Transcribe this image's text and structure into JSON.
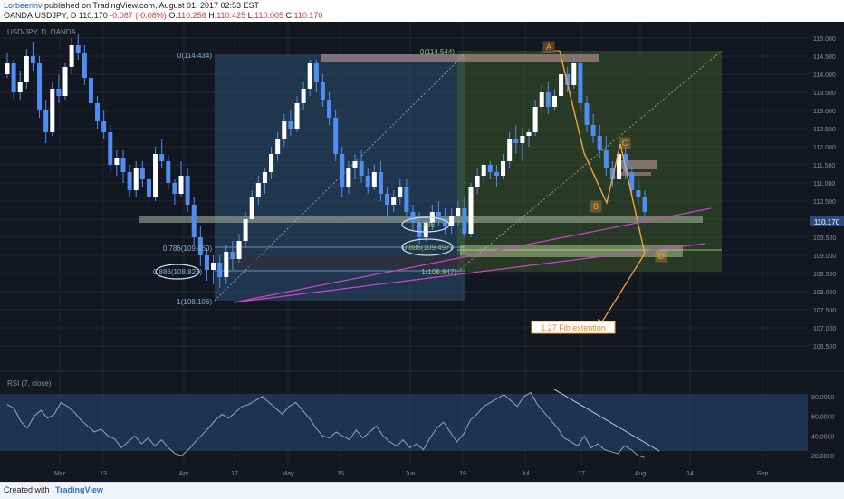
{
  "header": {
    "author": "Lorbeerinv",
    "published_text": "published on TradingView.com, August 01, 2017 02:53 EST",
    "symbol": "OANDA:USDJPY, D",
    "last": "110.170",
    "change": "-0.087 (-0.08%)",
    "o_label": "O:",
    "o": "110.256",
    "h_label": "H:",
    "h": "110.425",
    "l_label": "L:",
    "l": "110.005",
    "c_label": "C:",
    "c": "110.170"
  },
  "footer": {
    "created_with": "Created with",
    "brand": "TradingView"
  },
  "colors": {
    "background": "#131722",
    "candle": "#4f8ef0",
    "fib_left": "#3a6f9a",
    "fib_right": "#4f7a2a",
    "magenta": "#cc44cc",
    "orange": "#f4a340",
    "rsi_band": "#2a4d80"
  },
  "chart_data": [
    {
      "type": "candlestick",
      "title": "USD/JPY, D, OANDA",
      "ylim": [
        105.9,
        115.2
      ],
      "y_ticks": [
        "115.000",
        "114.500",
        "114.000",
        "113.500",
        "113.000",
        "112.500",
        "112.000",
        "111.500",
        "111.000",
        "110.500",
        "110.000",
        "109.500",
        "109.000",
        "108.500",
        "108.000",
        "107.500",
        "107.000",
        "106.500"
      ],
      "x_ticks": [
        "Mar",
        "13",
        "Apr",
        "17",
        "May",
        "15",
        "Jun",
        "19",
        "Jul",
        "17",
        "Aug",
        "14",
        "Sep"
      ],
      "last_price_label": "110.170",
      "series": [
        {
          "values": [
            [
              114.0,
              114.6,
              113.9,
              114.3
            ],
            [
              114.3,
              114.4,
              113.3,
              113.5
            ],
            [
              113.5,
              114.1,
              113.3,
              113.8
            ],
            [
              113.8,
              114.7,
              113.6,
              114.5
            ],
            [
              114.5,
              114.9,
              114.1,
              114.3
            ],
            [
              114.3,
              114.5,
              112.8,
              113.0
            ],
            [
              113.0,
              113.3,
              112.1,
              112.4
            ],
            [
              112.4,
              113.8,
              112.3,
              113.6
            ],
            [
              113.6,
              114.0,
              113.2,
              113.4
            ],
            [
              113.4,
              114.3,
              113.3,
              114.2
            ],
            [
              114.2,
              115.0,
              114.0,
              114.8
            ],
            [
              114.8,
              115.1,
              114.4,
              114.6
            ],
            [
              114.6,
              114.8,
              113.7,
              113.9
            ],
            [
              113.9,
              114.2,
              113.1,
              113.2
            ],
            [
              113.2,
              113.4,
              112.5,
              112.7
            ],
            [
              112.7,
              113.0,
              112.2,
              112.4
            ],
            [
              112.4,
              112.6,
              111.3,
              111.5
            ],
            [
              111.5,
              111.9,
              111.2,
              111.7
            ],
            [
              111.7,
              111.9,
              111.0,
              111.3
            ],
            [
              111.3,
              111.5,
              110.6,
              110.8
            ],
            [
              110.8,
              111.6,
              110.6,
              111.4
            ],
            [
              111.4,
              111.6,
              110.9,
              111.1
            ],
            [
              111.1,
              111.3,
              110.3,
              110.6
            ],
            [
              110.6,
              112.0,
              110.5,
              111.8
            ],
            [
              111.8,
              112.2,
              111.4,
              111.6
            ],
            [
              111.6,
              111.8,
              110.8,
              111.0
            ],
            [
              111.0,
              111.1,
              110.4,
              110.7
            ],
            [
              110.7,
              111.6,
              110.6,
              111.2
            ],
            [
              111.2,
              111.4,
              110.2,
              110.4
            ],
            [
              110.4,
              110.6,
              109.3,
              109.5
            ],
            [
              109.5,
              109.8,
              108.7,
              109.0
            ],
            [
              109.0,
              109.2,
              108.3,
              108.6
            ],
            [
              108.6,
              109.0,
              108.2,
              108.8
            ],
            [
              108.8,
              109.0,
              108.1,
              108.4
            ],
            [
              108.4,
              109.3,
              108.2,
              109.1
            ],
            [
              109.1,
              109.4,
              108.6,
              108.9
            ],
            [
              108.9,
              109.6,
              108.8,
              109.4
            ],
            [
              109.4,
              110.2,
              109.2,
              110.0
            ],
            [
              110.0,
              110.8,
              109.9,
              110.6
            ],
            [
              110.6,
              111.2,
              110.4,
              111.0
            ],
            [
              111.0,
              111.4,
              110.7,
              111.3
            ],
            [
              111.3,
              112.0,
              111.1,
              111.8
            ],
            [
              111.8,
              112.4,
              111.6,
              112.2
            ],
            [
              112.2,
              112.9,
              112.0,
              112.7
            ],
            [
              112.7,
              113.0,
              112.3,
              112.5
            ],
            [
              112.5,
              113.4,
              112.4,
              113.2
            ],
            [
              113.2,
              113.8,
              113.0,
              113.6
            ],
            [
              113.6,
              114.4,
              113.4,
              114.3
            ],
            [
              114.3,
              114.4,
              113.5,
              113.8
            ],
            [
              113.8,
              114.0,
              113.1,
              113.3
            ],
            [
              113.3,
              113.5,
              112.6,
              112.8
            ],
            [
              112.8,
              113.0,
              111.6,
              111.8
            ],
            [
              111.8,
              112.0,
              110.6,
              110.9
            ],
            [
              110.9,
              111.6,
              110.7,
              111.4
            ],
            [
              111.4,
              111.8,
              111.1,
              111.6
            ],
            [
              111.6,
              111.9,
              111.0,
              111.2
            ],
            [
              111.2,
              111.4,
              110.7,
              110.9
            ],
            [
              110.9,
              111.5,
              110.8,
              111.3
            ],
            [
              111.3,
              111.6,
              110.5,
              110.7
            ],
            [
              110.7,
              110.9,
              110.1,
              110.4
            ],
            [
              110.4,
              110.8,
              110.2,
              110.6
            ],
            [
              110.6,
              111.1,
              110.4,
              110.9
            ],
            [
              110.9,
              111.1,
              110.0,
              110.2
            ],
            [
              110.2,
              110.4,
              109.7,
              109.9
            ],
            [
              109.9,
              110.2,
              109.3,
              109.5
            ],
            [
              109.5,
              110.0,
              109.4,
              109.9
            ],
            [
              109.9,
              110.4,
              109.7,
              110.2
            ],
            [
              110.2,
              110.5,
              109.8,
              110.0
            ],
            [
              110.0,
              110.3,
              109.6,
              109.8
            ],
            [
              109.8,
              110.3,
              109.6,
              110.1
            ],
            [
              110.1,
              110.5,
              109.8,
              110.3
            ],
            [
              110.3,
              110.6,
              109.5,
              109.6
            ],
            [
              109.6,
              111.0,
              109.5,
              110.9
            ],
            [
              110.9,
              111.4,
              110.7,
              111.2
            ],
            [
              111.2,
              111.6,
              111.0,
              111.5
            ],
            [
              111.5,
              111.6,
              111.1,
              111.3
            ],
            [
              111.3,
              111.5,
              110.9,
              111.2
            ],
            [
              111.2,
              111.8,
              111.1,
              111.6
            ],
            [
              111.6,
              112.4,
              111.4,
              112.2
            ],
            [
              112.2,
              112.6,
              111.8,
              112.1
            ],
            [
              112.1,
              112.5,
              111.6,
              112.3
            ],
            [
              112.3,
              112.5,
              112.0,
              112.4
            ],
            [
              112.4,
              113.3,
              112.3,
              113.1
            ],
            [
              113.1,
              113.7,
              112.9,
              113.5
            ],
            [
              113.5,
              113.8,
              112.9,
              113.1
            ],
            [
              113.1,
              113.6,
              113.0,
              113.4
            ],
            [
              113.4,
              114.2,
              113.2,
              114.0
            ],
            [
              114.0,
              114.2,
              113.5,
              113.7
            ],
            [
              113.7,
              114.5,
              113.6,
              114.3
            ],
            [
              114.3,
              114.5,
              113.0,
              113.2
            ],
            [
              113.2,
              113.4,
              112.4,
              112.6
            ],
            [
              112.6,
              112.9,
              112.1,
              112.3
            ],
            [
              112.3,
              112.6,
              111.7,
              111.9
            ],
            [
              111.9,
              112.3,
              111.2,
              111.4
            ],
            [
              111.4,
              111.6,
              110.9,
              111.1
            ],
            [
              111.1,
              111.9,
              110.9,
              111.8
            ],
            [
              111.8,
              112.0,
              111.1,
              111.3
            ],
            [
              111.3,
              111.5,
              110.6,
              110.8
            ],
            [
              110.8,
              111.1,
              110.4,
              110.6
            ],
            [
              110.6,
              110.8,
              110.0,
              110.2
            ]
          ]
        }
      ],
      "annotations": {
        "fib_left_labels": [
          "0(114.434)",
          "0.786(109.460)",
          "0.886(108.827)",
          "1(108.106)"
        ],
        "fib_right_labels": [
          "0(114.544)",
          "0.786",
          "0.886(109.497)",
          "1(108.847)"
        ],
        "points": [
          "A",
          "B",
          "C",
          "D"
        ],
        "callout": "1.27 Fib extention"
      }
    },
    {
      "type": "line",
      "title": "RSI (7, close)",
      "ylim": [
        10,
        90
      ],
      "y_ticks": [
        "80.0000",
        "60.0000",
        "40.0000",
        "20.0000"
      ],
      "series": [
        {
          "values": [
            72,
            68,
            55,
            48,
            60,
            66,
            58,
            62,
            74,
            70,
            64,
            56,
            50,
            44,
            47,
            40,
            37,
            28,
            34,
            40,
            32,
            38,
            30,
            36,
            28,
            22,
            20,
            26,
            34,
            41,
            48,
            56,
            62,
            58,
            64,
            70,
            72,
            76,
            80,
            74,
            68,
            62,
            70,
            74,
            66,
            58,
            48,
            40,
            38,
            44,
            40,
            36,
            46,
            38,
            44,
            50,
            40,
            34,
            30,
            36,
            28,
            32,
            26,
            38,
            48,
            54,
            44,
            34,
            42,
            56,
            62,
            70,
            74,
            78,
            82,
            76,
            70,
            80,
            84,
            72,
            64,
            56,
            48,
            38,
            34,
            30,
            40,
            28,
            32,
            26,
            24,
            22,
            30,
            26,
            20,
            18
          ]
        }
      ]
    }
  ]
}
